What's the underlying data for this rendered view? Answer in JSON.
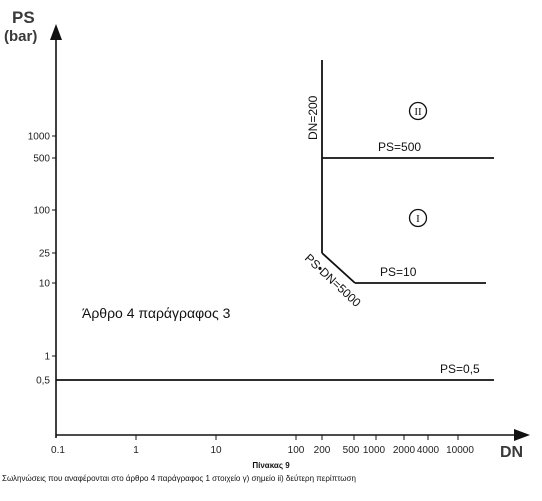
{
  "axes": {
    "y_title_line1": "PS",
    "y_title_line2": "(bar)",
    "x_title": "DN"
  },
  "y_ticks": [
    "1000",
    "500",
    "100",
    "25",
    "10",
    "1",
    "0,5"
  ],
  "x_ticks": [
    "0.1",
    "1",
    "10",
    "100",
    "200",
    "500",
    "1000",
    "2000",
    "4000",
    "10000"
  ],
  "labels": {
    "dn_200": "DN=200",
    "ps_500": "PS=500",
    "ps_10": "PS=10",
    "ps_dn_5000": "PS•DN=5000",
    "ps_05": "PS=0,5",
    "region_1": "I",
    "region_2": "II",
    "article": "Άρθρο 4 παράγραφος 3"
  },
  "caption": {
    "title": "Πίνακας 9",
    "text": "Σωληνώσεις που αναφέρονται στο άρθρο 4 παράγραφος 1 στοιχείο γ) σημείο ii) δεύτερη περίπτωση"
  },
  "colors": {
    "line": "#111111",
    "text": "#111111"
  }
}
